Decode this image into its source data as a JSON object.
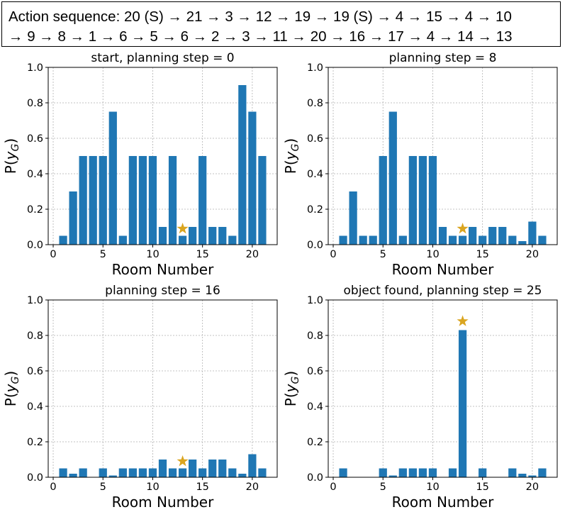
{
  "action_sequence": {
    "line1": "Action sequence: 20 (S) → 21 → 3 → 12 → 19 → 19 (S) → 4 → 15 → 4 → 10",
    "line2": "→ 9 → 8 → 1 → 6 → 5 → 6 → 2 → 3 → 11 → 20 → 16 → 17 → 4 → 14 → 13"
  },
  "colors": {
    "bar": "#1f77b4",
    "star": "#DAA520",
    "grid": "#b0b0b0"
  },
  "chart_data": [
    {
      "type": "bar",
      "title": "start, planning step = 0",
      "xlabel": "Room Number",
      "ylabel": "P(y_G)",
      "x": [
        1,
        2,
        3,
        4,
        5,
        6,
        7,
        8,
        9,
        10,
        11,
        12,
        13,
        14,
        15,
        16,
        17,
        18,
        19,
        20,
        21
      ],
      "values": [
        0.05,
        0.3,
        0.5,
        0.5,
        0.5,
        0.75,
        0.05,
        0.5,
        0.5,
        0.5,
        0.1,
        0.5,
        0.05,
        0.1,
        0.5,
        0.1,
        0.1,
        0.05,
        0.9,
        0.75,
        0.5
      ],
      "star": {
        "x": 13,
        "y": 0.09
      },
      "xlim": [
        -0.5,
        22.5
      ],
      "ylim": [
        0,
        1.0
      ],
      "xticks": [
        0,
        5,
        10,
        15,
        20
      ],
      "yticks": [
        0.0,
        0.2,
        0.4,
        0.6,
        0.8,
        1.0
      ],
      "grid": true
    },
    {
      "type": "bar",
      "title": "planning step = 8",
      "xlabel": "Room Number",
      "ylabel": "P(y_G)",
      "x": [
        1,
        2,
        3,
        4,
        5,
        6,
        7,
        8,
        9,
        10,
        11,
        12,
        13,
        14,
        15,
        16,
        17,
        18,
        19,
        20,
        21
      ],
      "values": [
        0.05,
        0.3,
        0.05,
        0.05,
        0.5,
        0.75,
        0.05,
        0.5,
        0.5,
        0.5,
        0.1,
        0.05,
        0.05,
        0.1,
        0.05,
        0.1,
        0.1,
        0.05,
        0.02,
        0.13,
        0.05
      ],
      "star": {
        "x": 13,
        "y": 0.09
      },
      "xlim": [
        -0.5,
        22.5
      ],
      "ylim": [
        0,
        1.0
      ],
      "xticks": [
        0,
        5,
        10,
        15,
        20
      ],
      "yticks": [
        0.0,
        0.2,
        0.4,
        0.6,
        0.8,
        1.0
      ],
      "grid": true
    },
    {
      "type": "bar",
      "title": "planning step = 16",
      "xlabel": "Room Number",
      "ylabel": "P(y_G)",
      "x": [
        1,
        2,
        3,
        4,
        5,
        6,
        7,
        8,
        9,
        10,
        11,
        12,
        13,
        14,
        15,
        16,
        17,
        18,
        19,
        20,
        21
      ],
      "values": [
        0.05,
        0.02,
        0.05,
        0.0,
        0.05,
        0.01,
        0.05,
        0.05,
        0.05,
        0.05,
        0.1,
        0.05,
        0.05,
        0.1,
        0.05,
        0.1,
        0.1,
        0.05,
        0.02,
        0.13,
        0.05
      ],
      "star": {
        "x": 13,
        "y": 0.09
      },
      "xlim": [
        -0.5,
        22.5
      ],
      "ylim": [
        0,
        1.0
      ],
      "xticks": [
        0,
        5,
        10,
        15,
        20
      ],
      "yticks": [
        0.0,
        0.2,
        0.4,
        0.6,
        0.8,
        1.0
      ],
      "grid": true
    },
    {
      "type": "bar",
      "title": "object found, planning step = 25",
      "xlabel": "Room Number",
      "ylabel": "P(y_G)",
      "x": [
        1,
        2,
        3,
        4,
        5,
        6,
        7,
        8,
        9,
        10,
        11,
        12,
        13,
        14,
        15,
        16,
        17,
        18,
        19,
        20,
        21
      ],
      "values": [
        0.05,
        0.0,
        0.0,
        0.0,
        0.05,
        0.01,
        0.05,
        0.05,
        0.05,
        0.05,
        0.0,
        0.05,
        0.83,
        0.0,
        0.05,
        0.0,
        0.0,
        0.05,
        0.02,
        0.01,
        0.05
      ],
      "star": {
        "x": 13,
        "y": 0.88
      },
      "xlim": [
        -0.5,
        22.5
      ],
      "ylim": [
        0,
        1.0
      ],
      "xticks": [
        0,
        5,
        10,
        15,
        20
      ],
      "yticks": [
        0.0,
        0.2,
        0.4,
        0.6,
        0.8,
        1.0
      ],
      "grid": true
    }
  ]
}
